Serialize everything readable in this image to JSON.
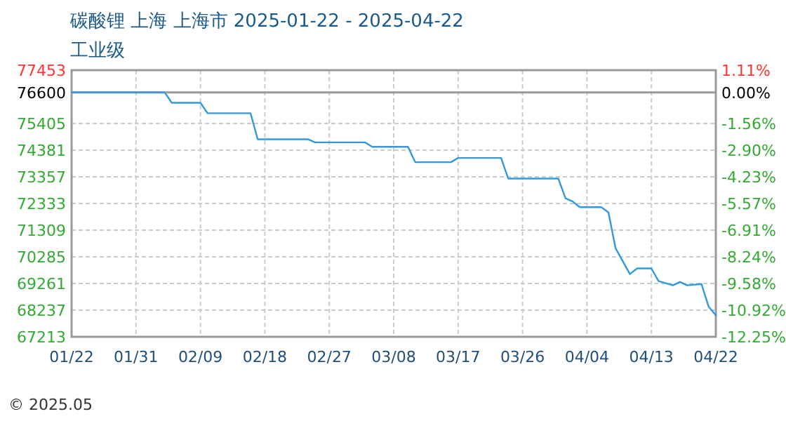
{
  "chart_data": {
    "type": "line",
    "title": "碳酸锂 上海 上海市 2025-01-22 - 2025-04-22",
    "subtitle": "工业级",
    "annotations": [
      "© 2025.05"
    ],
    "x": [
      "2025-01-22",
      "2025-02-04",
      "2025-02-05",
      "2025-02-09",
      "2025-02-10",
      "2025-02-16",
      "2025-02-17",
      "2025-02-24",
      "2025-02-25",
      "2025-03-04",
      "2025-03-05",
      "2025-03-10",
      "2025-03-11",
      "2025-03-16",
      "2025-03-17",
      "2025-03-23",
      "2025-03-24",
      "2025-03-31",
      "2025-04-01",
      "2025-04-02",
      "2025-04-03",
      "2025-04-06",
      "2025-04-07",
      "2025-04-08",
      "2025-04-10",
      "2025-04-11",
      "2025-04-13",
      "2025-04-14",
      "2025-04-16",
      "2025-04-17",
      "2025-04-18",
      "2025-04-20",
      "2025-04-21",
      "2025-04-22"
    ],
    "series": [
      {
        "color": "#3399dd",
        "values": [
          76600,
          76600,
          76200,
          76200,
          75800,
          75800,
          74800,
          74800,
          74680,
          74680,
          74510,
          74510,
          73920,
          73920,
          74080,
          74080,
          73290,
          73290,
          72530,
          72410,
          72190,
          72190,
          71990,
          70610,
          69620,
          69840,
          69840,
          69350,
          69190,
          69320,
          69190,
          69240,
          68370,
          68040
        ]
      }
    ],
    "xlim": [
      "2025-01-22",
      "2025-04-22"
    ],
    "xticks": [
      {
        "value": "2025-01-22",
        "label": "01/22"
      },
      {
        "value": "2025-01-31",
        "label": "01/31"
      },
      {
        "value": "2025-02-09",
        "label": "02/09"
      },
      {
        "value": "2025-02-18",
        "label": "02/18"
      },
      {
        "value": "2025-02-27",
        "label": "02/27"
      },
      {
        "value": "2025-03-08",
        "label": "03/08"
      },
      {
        "value": "2025-03-17",
        "label": "03/17"
      },
      {
        "value": "2025-03-26",
        "label": "03/26"
      },
      {
        "value": "2025-04-04",
        "label": "04/04"
      },
      {
        "value": "2025-04-13",
        "label": "04/13"
      },
      {
        "value": "2025-04-22",
        "label": "04/22"
      }
    ],
    "ylim": [
      67213,
      77453
    ],
    "yticks": [
      77453,
      76600,
      75405,
      74381,
      73357,
      72333,
      71309,
      70285,
      69261,
      68237,
      67213
    ],
    "y2lim": [
      -12.25,
      1.11
    ],
    "y2ticks": [
      {
        "value": 1.11,
        "label": "1.11%"
      },
      {
        "value": 0,
        "label": "0.00%"
      },
      {
        "value": -1.56,
        "label": "-1.56%"
      },
      {
        "value": -2.9,
        "label": "-2.90%"
      },
      {
        "value": -4.23,
        "label": "-4.23%"
      },
      {
        "value": -5.57,
        "label": "-5.57%"
      },
      {
        "value": -6.91,
        "label": "-6.91%"
      },
      {
        "value": -8.24,
        "label": "-8.24%"
      },
      {
        "value": -9.58,
        "label": "-9.58%"
      },
      {
        "value": -10.92,
        "label": "-10.92%"
      },
      {
        "value": -12.25,
        "label": "-12.25%"
      }
    ],
    "ref_lines": [
      {
        "axis": "y",
        "value": 76600,
        "color": "#999999"
      }
    ],
    "grid": true,
    "marker": "none",
    "line_style": "solid"
  }
}
